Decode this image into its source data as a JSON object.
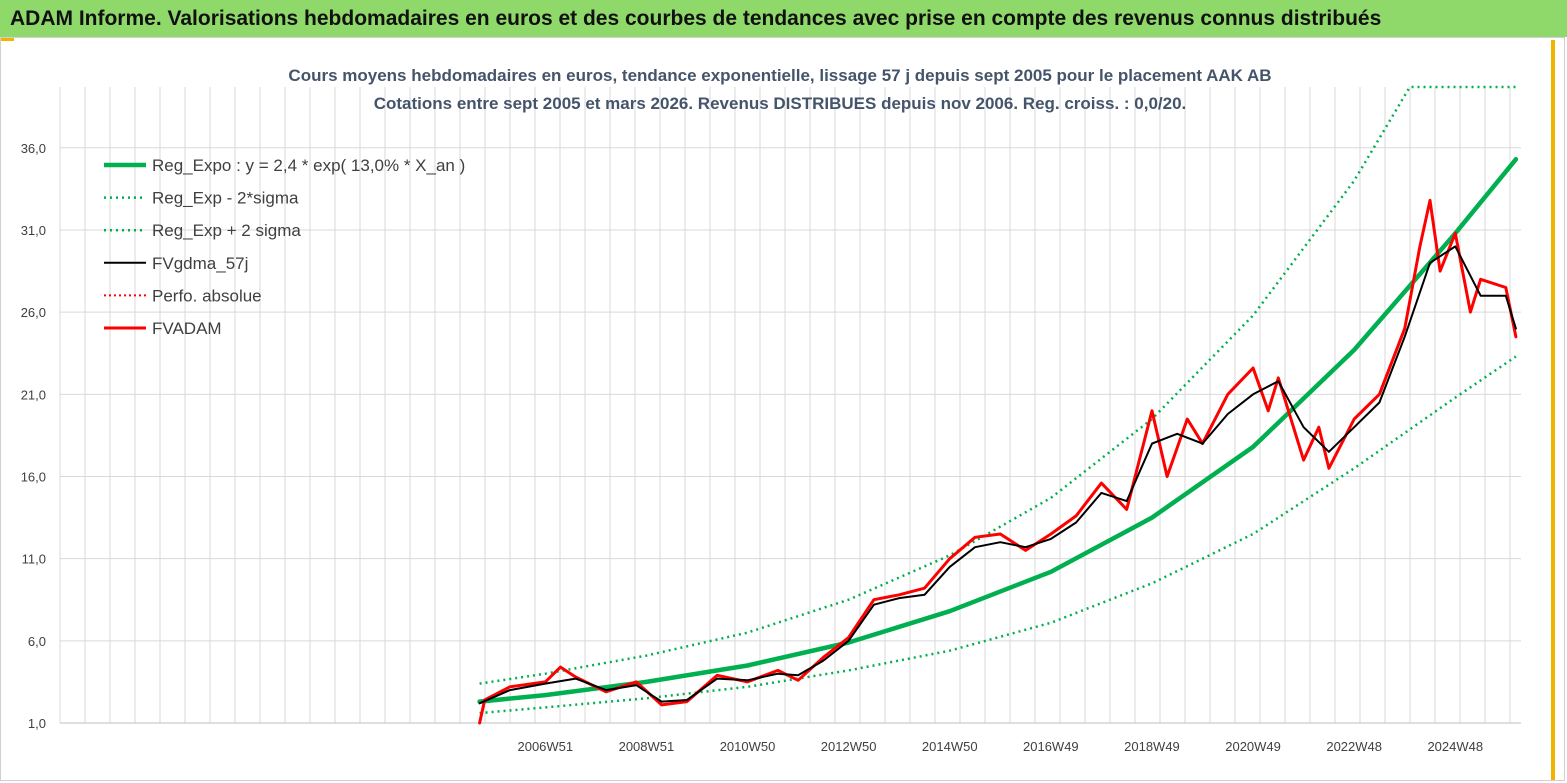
{
  "header": {
    "banner": "ADAM Informe. Valorisations hebdomadaires en euros et des courbes de tendances avec prise en compte des revenus connus distribués"
  },
  "chart_data": {
    "type": "line",
    "title": "Cours moyens hebdomadaires en euros, tendance exponentielle, lissage 57 j depuis sept 2005 pour le placement AAK AB",
    "subtitle": "Cotations entre sept 2005 et mars 2026. Revenus DISTRIBUES depuis nov 2006. Reg. croiss. : 0,0/20.",
    "xlabel": "",
    "ylabel": "",
    "ylim": [
      1,
      39.7
    ],
    "yticks": [
      1,
      6,
      11,
      16,
      21,
      26,
      31,
      36
    ],
    "ytick_labels": [
      "1,0",
      "6,0",
      "11,0",
      "16,0",
      "21,0",
      "26,0",
      "31,0",
      "36,0"
    ],
    "xlim": [
      1997.4,
      2026.3
    ],
    "xticks": [
      2007,
      2009,
      2011,
      2013,
      2015,
      2017,
      2019,
      2021,
      2023,
      2025
    ],
    "xtick_labels": [
      "2006W51",
      "2008W51",
      "2010W50",
      "2012W50",
      "2014W50",
      "2016W49",
      "2018W49",
      "2020W49",
      "2022W48",
      "2024W48"
    ],
    "legend_position": "top-left",
    "colors": {
      "reg": "#00b050",
      "band": "#00b050",
      "fv": "#000000",
      "perfo": "#ff0000",
      "adam": "#ff0000",
      "grid": "#d9d9d9"
    },
    "series": [
      {
        "key": "reg",
        "name": "Reg_Expo : y = 2,4 * exp( 13,0% *  X_an )",
        "x": [
          2005.7,
          2007,
          2009,
          2011,
          2013,
          2015,
          2017,
          2019,
          2021,
          2023,
          2025,
          2026.2
        ],
        "values": [
          2.3,
          2.7,
          3.5,
          4.5,
          5.9,
          7.8,
          10.2,
          13.5,
          17.8,
          23.7,
          30.8,
          35.3
        ]
      },
      {
        "key": "low",
        "name": "Reg_Exp - 2*sigma",
        "x": [
          2005.7,
          2007,
          2009,
          2011,
          2013,
          2015,
          2017,
          2019,
          2021,
          2023,
          2025,
          2026.2
        ],
        "values": [
          1.6,
          1.95,
          2.5,
          3.2,
          4.2,
          5.4,
          7.1,
          9.5,
          12.5,
          16.5,
          20.8,
          23.3
        ]
      },
      {
        "key": "high",
        "name": "Reg_Exp + 2 sigma",
        "x": [
          2005.7,
          2007,
          2009,
          2011,
          2013,
          2015,
          2017,
          2019,
          2021,
          2023,
          2024.1,
          2026.2
        ],
        "values": [
          3.4,
          4.0,
          5.1,
          6.5,
          8.5,
          11.2,
          14.7,
          19.5,
          25.8,
          34.0,
          39.7,
          39.7
        ]
      },
      {
        "key": "fv",
        "name": "FVgdma_57j",
        "x": [
          2005.7,
          2006.3,
          2007,
          2007.6,
          2008.2,
          2008.8,
          2009.3,
          2009.8,
          2010.4,
          2011,
          2011.6,
          2012,
          2012.5,
          2013,
          2013.5,
          2014,
          2014.5,
          2015,
          2015.5,
          2016,
          2016.5,
          2017,
          2017.5,
          2018,
          2018.5,
          2019,
          2019.5,
          2020,
          2020.5,
          2021,
          2021.5,
          2022,
          2022.5,
          2023,
          2023.5,
          2024,
          2024.5,
          2025,
          2025.5,
          2026,
          2026.2
        ],
        "values": [
          2.2,
          3.0,
          3.4,
          3.7,
          3.0,
          3.3,
          2.3,
          2.4,
          3.7,
          3.6,
          4.0,
          3.9,
          4.8,
          6.0,
          8.2,
          8.6,
          8.8,
          10.5,
          11.7,
          12.0,
          11.7,
          12.2,
          13.2,
          15.0,
          14.5,
          18.0,
          18.6,
          18.0,
          19.8,
          21.0,
          21.8,
          19.0,
          17.5,
          19.0,
          20.5,
          24.5,
          29.0,
          30.0,
          27.0,
          27.0,
          25.0
        ]
      },
      {
        "key": "perfo",
        "name": "Perfo. absolue",
        "x": [],
        "values": []
      },
      {
        "key": "adam",
        "name": "FVADAM",
        "x": [
          2005.7,
          2005.8,
          2006.3,
          2007,
          2007.3,
          2007.6,
          2008.2,
          2008.8,
          2009.3,
          2009.8,
          2010.4,
          2011,
          2011.6,
          2012,
          2012.5,
          2013,
          2013.5,
          2014,
          2014.5,
          2015,
          2015.5,
          2016,
          2016.5,
          2017,
          2017.5,
          2018,
          2018.5,
          2019,
          2019.3,
          2019.7,
          2020,
          2020.5,
          2021,
          2021.3,
          2021.5,
          2022,
          2022.3,
          2022.5,
          2023,
          2023.5,
          2024,
          2024.3,
          2024.5,
          2024.7,
          2025,
          2025.3,
          2025.5,
          2026,
          2026.2
        ],
        "values": [
          1.0,
          2.4,
          3.2,
          3.5,
          4.4,
          3.8,
          2.9,
          3.5,
          2.1,
          2.3,
          3.9,
          3.5,
          4.2,
          3.6,
          5.0,
          6.2,
          8.5,
          8.8,
          9.2,
          11.0,
          12.3,
          12.5,
          11.5,
          12.5,
          13.6,
          15.6,
          14.0,
          20.0,
          16.0,
          19.5,
          18.0,
          21.0,
          22.6,
          20.0,
          22.0,
          17.0,
          19.0,
          16.5,
          19.5,
          21.0,
          25.0,
          30.0,
          32.8,
          28.5,
          30.8,
          26.0,
          28.0,
          27.5,
          24.5
        ]
      }
    ]
  }
}
